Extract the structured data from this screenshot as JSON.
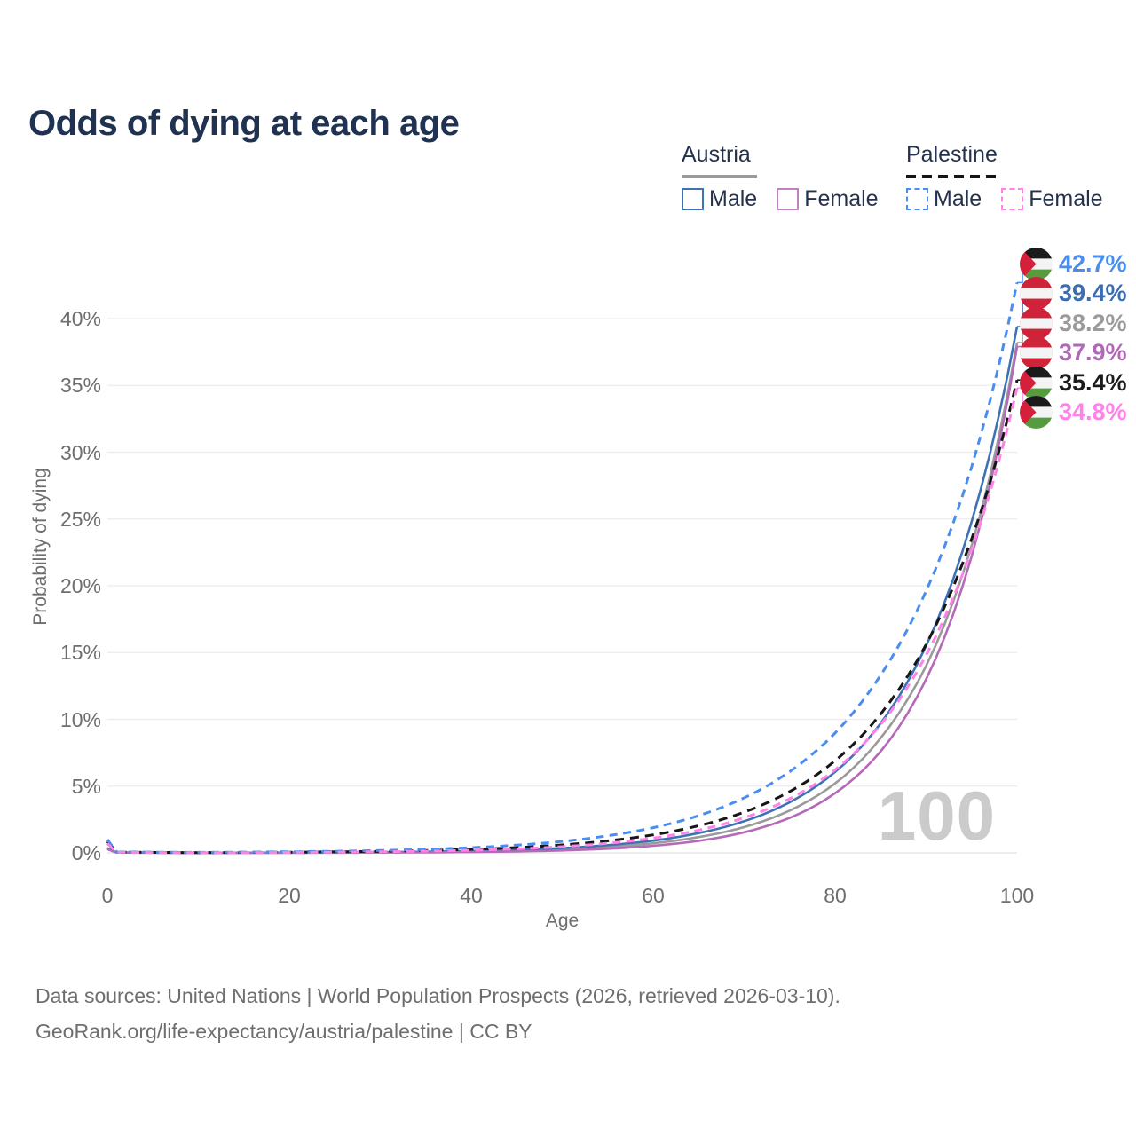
{
  "title": "Odds of dying at each age",
  "colors": {
    "title_text": "#1f3251",
    "legend_text": "#25324e",
    "axis_text": "#6e6e6e",
    "gridline": "#ececec",
    "baseline": "#e2e2e2",
    "watermark": "#cbcbcb",
    "austria_male": "#3f72b5",
    "austria_female": "#b46ab8",
    "austria_both": "#9a9a9a",
    "palestine_male": "#4a8df0",
    "palestine_female": "#ff82e8",
    "palestine_both": "#161616"
  },
  "flags": {
    "austria": {
      "red": "#ce2339",
      "white": "#f4f4f4"
    },
    "palestine": {
      "black": "#1a1a1a",
      "white": "#f4f4f4",
      "green": "#569c3e",
      "red": "#d5203b"
    }
  },
  "legend": {
    "groups": [
      {
        "name": "Austria",
        "rule_style": "solid",
        "rule_color": "#9a9a9a",
        "items": [
          {
            "label": "Male",
            "color": "#3f72b5",
            "dashed": false
          },
          {
            "label": "Female",
            "color": "#c081c4",
            "dashed": false
          }
        ]
      },
      {
        "name": "Palestine",
        "rule_style": "dashed",
        "rule_color": "#141414",
        "items": [
          {
            "label": "Male",
            "color": "#4a8df0",
            "dashed": true
          },
          {
            "label": "Female",
            "color": "#ff82e8",
            "dashed": true
          }
        ]
      }
    ]
  },
  "axes": {
    "y_label": "Probability of dying",
    "y_ticks": [
      "0%",
      "5%",
      "10%",
      "15%",
      "20%",
      "25%",
      "30%",
      "35%",
      "40%"
    ],
    "y_tick_values": [
      0,
      5,
      10,
      15,
      20,
      25,
      30,
      35,
      40
    ],
    "x_label": "Age",
    "x_ticks": [
      "0",
      "20",
      "40",
      "60",
      "80",
      "100"
    ],
    "x_tick_values": [
      0,
      20,
      40,
      60,
      80,
      100
    ]
  },
  "watermark": "100",
  "end_labels": [
    {
      "value": "42.7%",
      "series": "palestine_male",
      "flag": "palestine",
      "color": "#4a8df0"
    },
    {
      "value": "39.4%",
      "series": "austria_male",
      "flag": "austria",
      "color": "#3e6cb0"
    },
    {
      "value": "38.2%",
      "series": "austria_both",
      "flag": "austria",
      "color": "#9b9b9b"
    },
    {
      "value": "37.9%",
      "series": "austria_female",
      "flag": "austria",
      "color": "#b069b5"
    },
    {
      "value": "35.4%",
      "series": "palestine_both",
      "flag": "palestine",
      "color": "#1b1b1b"
    },
    {
      "value": "34.8%",
      "series": "palestine_female",
      "flag": "palestine",
      "color": "#ff82e8"
    }
  ],
  "footer": {
    "line1": "Data sources: United Nations | World Population Prospects (2026, retrieved 2026-03-10).",
    "line2": "GeoRank.org/life-expectancy/austria/palestine | CC BY"
  },
  "chart_data": {
    "type": "line",
    "title": "Odds of dying at each age",
    "xlabel": "Age",
    "ylabel": "Probability of dying",
    "xlim": [
      0,
      100
    ],
    "ylim_pct": [
      0,
      44
    ],
    "grid": "horizontal",
    "legend_position": "top-right",
    "x_ages": [
      0,
      1,
      10,
      20,
      30,
      40,
      50,
      55,
      60,
      65,
      70,
      75,
      80,
      85,
      90,
      95,
      100
    ],
    "series": [
      {
        "key": "austria_both",
        "name": "Austria (both sexes)",
        "color": "#9a9a9a",
        "dashed": false,
        "values_pct": [
          0.3,
          0.025,
          0.006,
          0.014,
          0.037,
          0.1,
          0.27,
          0.44,
          0.72,
          1.18,
          1.93,
          3.17,
          5.2,
          8.6,
          14.0,
          23.0,
          38.2
        ]
      },
      {
        "key": "austria_male",
        "name": "Austria Male",
        "color": "#3f72b5",
        "dashed": false,
        "values_pct": [
          0.35,
          0.03,
          0.008,
          0.022,
          0.055,
          0.14,
          0.36,
          0.58,
          0.92,
          1.48,
          2.37,
          3.79,
          6.06,
          9.7,
          15.5,
          24.8,
          39.4
        ]
      },
      {
        "key": "austria_female",
        "name": "Austria Female",
        "color": "#b46ab8",
        "dashed": false,
        "values_pct": [
          0.28,
          0.02,
          0.005,
          0.008,
          0.022,
          0.063,
          0.18,
          0.31,
          0.53,
          0.9,
          1.54,
          2.62,
          4.47,
          7.6,
          13.0,
          22.2,
          37.9
        ]
      },
      {
        "key": "palestine_both",
        "name": "Palestine (both sexes)",
        "color": "#161616",
        "dashed": true,
        "values_pct": [
          0.85,
          0.055,
          0.023,
          0.052,
          0.117,
          0.265,
          0.6,
          0.9,
          1.35,
          2.03,
          3.05,
          4.59,
          6.9,
          10.4,
          15.6,
          23.5,
          35.4
        ]
      },
      {
        "key": "palestine_male",
        "name": "Palestine Male",
        "color": "#4a8df0",
        "dashed": true,
        "values_pct": [
          1.0,
          0.07,
          0.04,
          0.083,
          0.18,
          0.39,
          0.86,
          1.28,
          1.89,
          2.79,
          4.12,
          6.08,
          8.98,
          13.3,
          19.6,
          28.9,
          42.7
        ]
      },
      {
        "key": "palestine_female",
        "name": "Palestine Female",
        "color": "#ff82e8",
        "dashed": true,
        "values_pct": [
          0.7,
          0.045,
          0.015,
          0.035,
          0.083,
          0.196,
          0.466,
          0.72,
          1.11,
          1.7,
          2.63,
          4.05,
          6.22,
          9.6,
          14.8,
          22.7,
          34.8
        ]
      }
    ],
    "end_values_pct": {
      "palestine_male": 42.7,
      "austria_male": 39.4,
      "austria_both": 38.2,
      "austria_female": 37.9,
      "palestine_both": 35.4,
      "palestine_female": 34.8
    }
  }
}
